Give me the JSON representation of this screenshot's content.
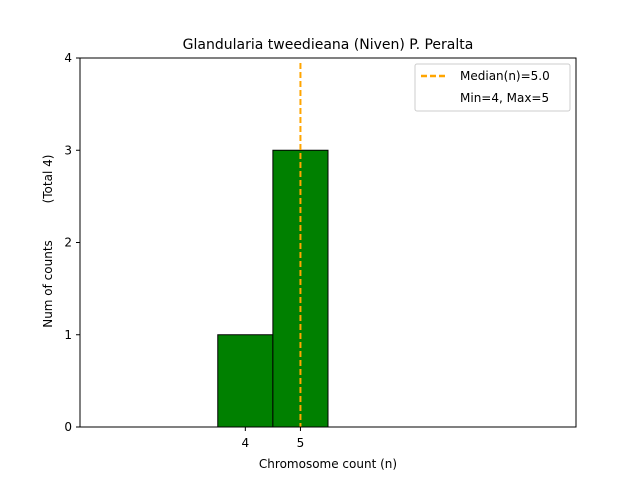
{
  "chart_data": {
    "type": "bar",
    "title": "Glandularia tweedieana (Niven) P. Peralta",
    "xlabel": "Chromosome count (n)",
    "ylabel": "Num of counts",
    "ylabel_extra": "(Total 4)",
    "xlim": [
      1.0,
      10.0
    ],
    "ylim": [
      0,
      4
    ],
    "x_ticks": [
      4,
      5
    ],
    "y_ticks": [
      0,
      1,
      2,
      3,
      4
    ],
    "bin_width": 1,
    "bars": [
      {
        "x": 4,
        "count": 1
      },
      {
        "x": 5,
        "count": 3
      }
    ],
    "baseline_span": [
      1.5,
      9.5
    ],
    "bar_color": "#008000",
    "bar_edge_color": "#000000",
    "median": 5.0,
    "median_color": "#ffa500",
    "legend": {
      "placement": "top-right",
      "entries": [
        "Median(n)=5.0",
        "Min=4, Max=5"
      ]
    },
    "grid": false
  }
}
